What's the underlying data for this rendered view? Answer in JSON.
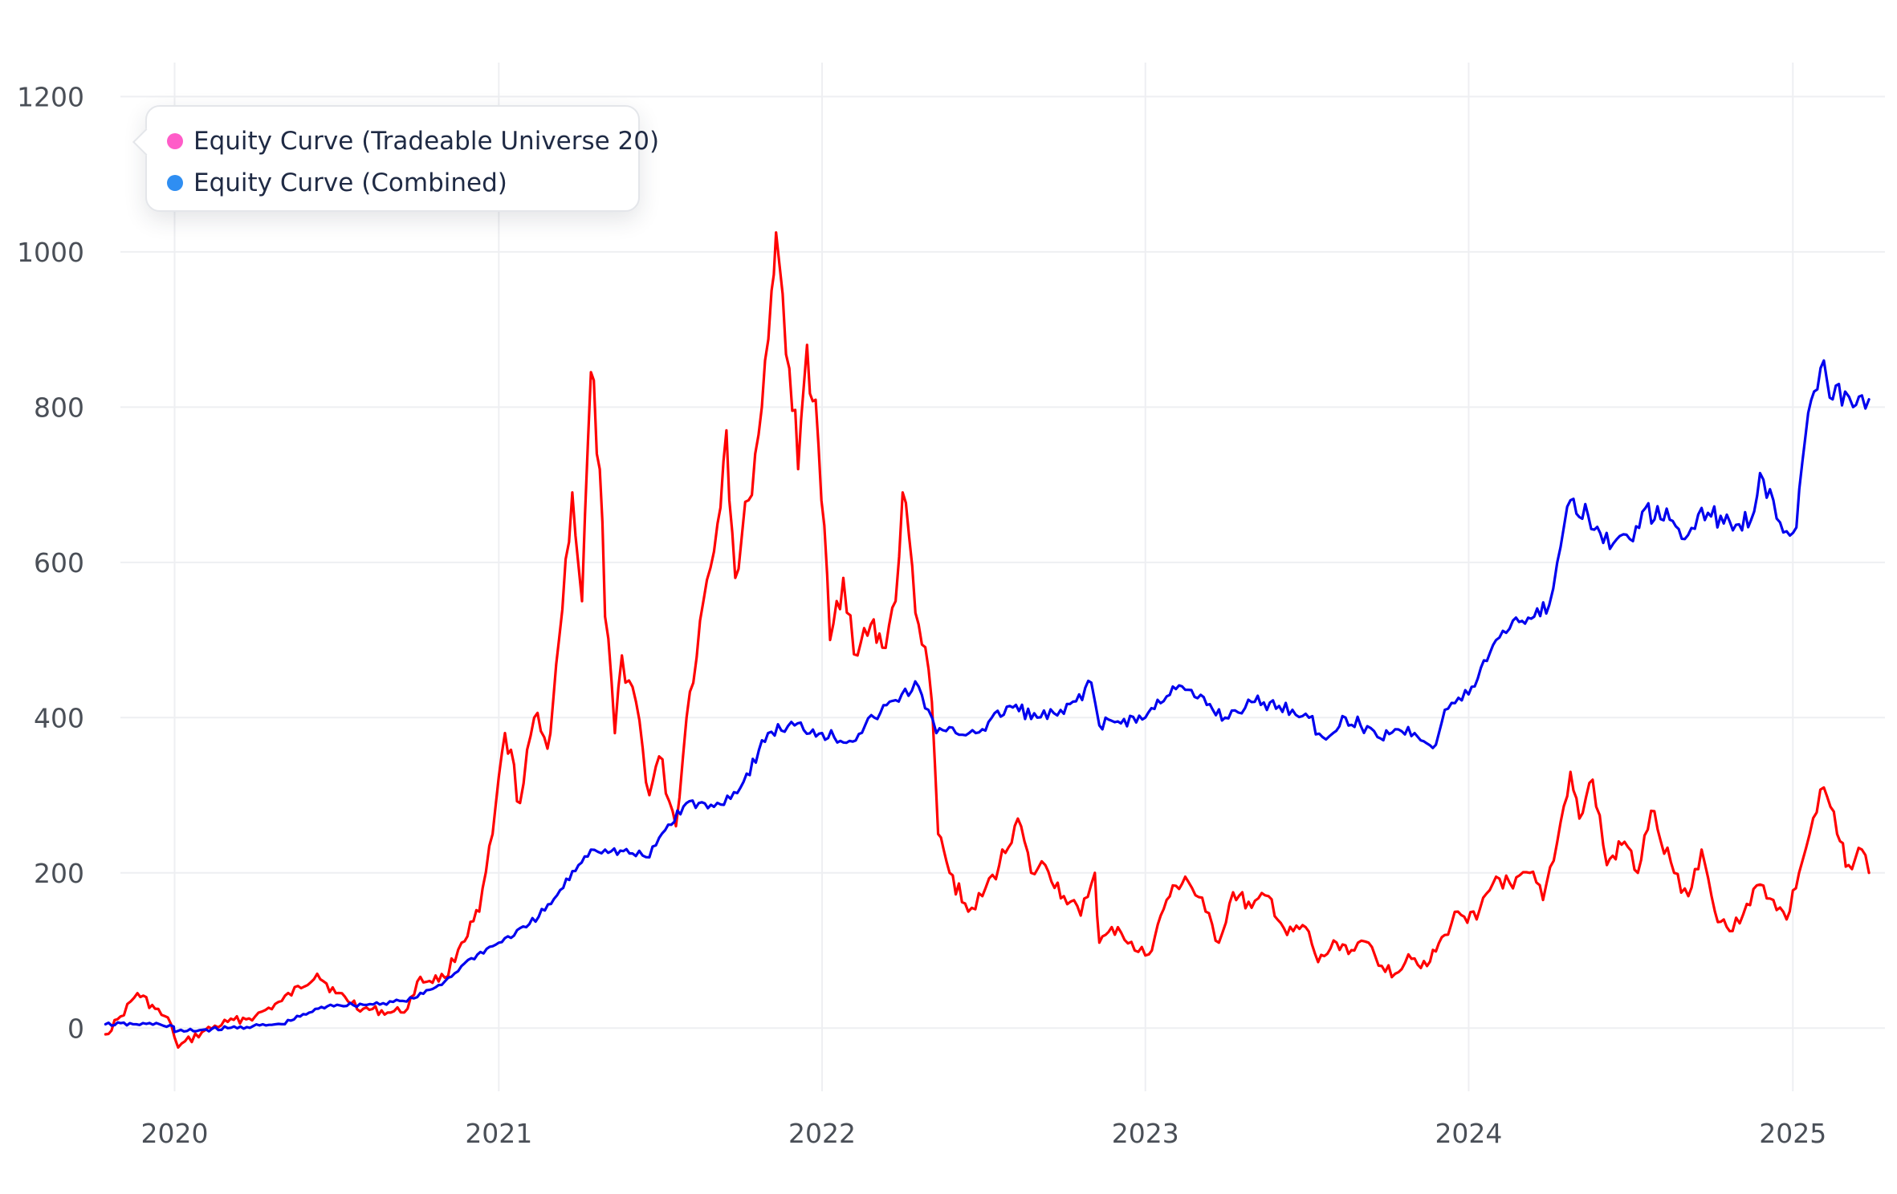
{
  "chart_data": {
    "type": "line",
    "title": "",
    "xlabel": "",
    "ylabel": "",
    "xlim": [
      "2019-10-01",
      "2025-04-15"
    ],
    "ylim": [
      -100,
      1250
    ],
    "x_ticks": [
      "2020",
      "2021",
      "2022",
      "2023",
      "2024",
      "2025"
    ],
    "y_ticks": [
      0,
      200,
      400,
      600,
      800,
      1000,
      1200
    ],
    "grid": true,
    "legend_position": "top-left",
    "legend": [
      {
        "label": "Equity Curve (Tradeable Universe 20)",
        "dot_color": "#ff5cc8"
      },
      {
        "label": "Equity Curve (Combined)",
        "dot_color": "#2f8ef2"
      }
    ],
    "series": [
      {
        "name": "Equity Curve (Tradeable Universe 20)",
        "color": "#ff0000",
        "points": [
          [
            "2019-10-15",
            -8
          ],
          [
            "2019-11-01",
            15
          ],
          [
            "2019-11-20",
            45
          ],
          [
            "2019-12-10",
            25
          ],
          [
            "2019-12-28",
            5
          ],
          [
            "2020-01-05",
            -25
          ],
          [
            "2020-02-01",
            -5
          ],
          [
            "2020-03-01",
            8
          ],
          [
            "2020-04-01",
            15
          ],
          [
            "2020-05-01",
            35
          ],
          [
            "2020-06-10",
            70
          ],
          [
            "2020-07-01",
            45
          ],
          [
            "2020-08-01",
            25
          ],
          [
            "2020-09-01",
            20
          ],
          [
            "2020-09-20",
            25
          ],
          [
            "2020-10-01",
            60
          ],
          [
            "2020-11-01",
            65
          ],
          [
            "2020-11-20",
            110
          ],
          [
            "2020-12-10",
            150
          ],
          [
            "2020-12-25",
            250
          ],
          [
            "2021-01-08",
            380
          ],
          [
            "2021-01-25",
            290
          ],
          [
            "2021-02-10",
            400
          ],
          [
            "2021-02-25",
            360
          ],
          [
            "2021-03-10",
            500
          ],
          [
            "2021-03-25",
            690
          ],
          [
            "2021-04-05",
            550
          ],
          [
            "2021-04-15",
            845
          ],
          [
            "2021-04-25",
            720
          ],
          [
            "2021-05-01",
            530
          ],
          [
            "2021-05-12",
            380
          ],
          [
            "2021-05-20",
            480
          ],
          [
            "2021-06-05",
            420
          ],
          [
            "2021-06-20",
            300
          ],
          [
            "2021-07-01",
            350
          ],
          [
            "2021-07-20",
            260
          ],
          [
            "2021-08-01",
            400
          ],
          [
            "2021-08-20",
            550
          ],
          [
            "2021-09-05",
            650
          ],
          [
            "2021-09-15",
            770
          ],
          [
            "2021-09-25",
            580
          ],
          [
            "2021-10-10",
            680
          ],
          [
            "2021-10-25",
            800
          ],
          [
            "2021-11-05",
            950
          ],
          [
            "2021-11-10",
            1025
          ],
          [
            "2021-11-25",
            850
          ],
          [
            "2021-12-05",
            720
          ],
          [
            "2021-12-15",
            880
          ],
          [
            "2021-12-28",
            750
          ],
          [
            "2022-01-10",
            500
          ],
          [
            "2022-01-25",
            580
          ],
          [
            "2022-02-10",
            480
          ],
          [
            "2022-02-25",
            520
          ],
          [
            "2022-03-10",
            490
          ],
          [
            "2022-03-25",
            550
          ],
          [
            "2022-04-02",
            690
          ],
          [
            "2022-04-20",
            520
          ],
          [
            "2022-05-05",
            420
          ],
          [
            "2022-05-12",
            250
          ],
          [
            "2022-05-25",
            200
          ],
          [
            "2022-06-15",
            150
          ],
          [
            "2022-07-01",
            170
          ],
          [
            "2022-07-20",
            210
          ],
          [
            "2022-08-10",
            270
          ],
          [
            "2022-08-25",
            200
          ],
          [
            "2022-09-10",
            210
          ],
          [
            "2022-10-01",
            170
          ],
          [
            "2022-10-20",
            145
          ],
          [
            "2022-11-05",
            200
          ],
          [
            "2022-11-10",
            110
          ],
          [
            "2022-12-01",
            130
          ],
          [
            "2022-12-20",
            100
          ],
          [
            "2023-01-05",
            95
          ],
          [
            "2023-01-25",
            165
          ],
          [
            "2023-02-15",
            195
          ],
          [
            "2023-03-10",
            150
          ],
          [
            "2023-03-25",
            110
          ],
          [
            "2023-04-10",
            175
          ],
          [
            "2023-05-01",
            155
          ],
          [
            "2023-05-20",
            170
          ],
          [
            "2023-06-10",
            120
          ],
          [
            "2023-07-01",
            130
          ],
          [
            "2023-07-15",
            85
          ],
          [
            "2023-08-05",
            110
          ],
          [
            "2023-08-25",
            100
          ],
          [
            "2023-09-10",
            110
          ],
          [
            "2023-09-25",
            80
          ],
          [
            "2023-10-10",
            70
          ],
          [
            "2023-10-25",
            95
          ],
          [
            "2023-11-15",
            80
          ],
          [
            "2023-12-05",
            120
          ],
          [
            "2023-12-20",
            150
          ],
          [
            "2024-01-10",
            140
          ],
          [
            "2024-02-01",
            195
          ],
          [
            "2024-02-20",
            180
          ],
          [
            "2024-03-10",
            200
          ],
          [
            "2024-03-25",
            165
          ],
          [
            "2024-04-10",
            240
          ],
          [
            "2024-04-25",
            330
          ],
          [
            "2024-05-05",
            270
          ],
          [
            "2024-05-20",
            320
          ],
          [
            "2024-06-05",
            210
          ],
          [
            "2024-06-25",
            240
          ],
          [
            "2024-07-10",
            200
          ],
          [
            "2024-07-25",
            280
          ],
          [
            "2024-08-05",
            240
          ],
          [
            "2024-08-20",
            200
          ],
          [
            "2024-09-05",
            170
          ],
          [
            "2024-09-20",
            230
          ],
          [
            "2024-10-05",
            150
          ],
          [
            "2024-10-25",
            125
          ],
          [
            "2024-11-10",
            160
          ],
          [
            "2024-11-25",
            185
          ],
          [
            "2024-12-10",
            165
          ],
          [
            "2024-12-25",
            140
          ],
          [
            "2025-01-08",
            200
          ],
          [
            "2025-01-20",
            250
          ],
          [
            "2025-02-05",
            310
          ],
          [
            "2025-02-20",
            250
          ],
          [
            "2025-03-05",
            210
          ],
          [
            "2025-03-20",
            230
          ],
          [
            "2025-03-28",
            200
          ]
        ]
      },
      {
        "name": "Equity Curve (Combined)",
        "color": "#0000ee",
        "points": [
          [
            "2019-10-15",
            5
          ],
          [
            "2019-11-15",
            5
          ],
          [
            "2019-12-15",
            5
          ],
          [
            "2019-12-31",
            2
          ],
          [
            "2020-01-01",
            -5
          ],
          [
            "2020-03-01",
            0
          ],
          [
            "2020-05-01",
            5
          ],
          [
            "2020-06-01",
            20
          ],
          [
            "2020-06-25",
            30
          ],
          [
            "2020-08-01",
            30
          ],
          [
            "2020-09-15",
            35
          ],
          [
            "2020-10-01",
            40
          ],
          [
            "2020-11-01",
            60
          ],
          [
            "2020-12-01",
            90
          ],
          [
            "2021-01-01",
            110
          ],
          [
            "2021-02-01",
            130
          ],
          [
            "2021-03-01",
            160
          ],
          [
            "2021-04-01",
            210
          ],
          [
            "2021-04-15",
            230
          ],
          [
            "2021-05-01",
            230
          ],
          [
            "2021-06-01",
            225
          ],
          [
            "2021-06-20",
            220
          ],
          [
            "2021-07-01",
            245
          ],
          [
            "2021-08-01",
            290
          ],
          [
            "2021-09-01",
            285
          ],
          [
            "2021-10-01",
            310
          ],
          [
            "2021-11-01",
            380
          ],
          [
            "2021-12-01",
            390
          ],
          [
            "2022-01-01",
            380
          ],
          [
            "2022-02-01",
            370
          ],
          [
            "2022-03-01",
            400
          ],
          [
            "2022-04-01",
            430
          ],
          [
            "2022-04-20",
            440
          ],
          [
            "2022-05-01",
            410
          ],
          [
            "2022-05-10",
            380
          ],
          [
            "2022-06-01",
            380
          ],
          [
            "2022-07-01",
            385
          ],
          [
            "2022-08-01",
            415
          ],
          [
            "2022-09-01",
            400
          ],
          [
            "2022-10-01",
            405
          ],
          [
            "2022-11-01",
            445
          ],
          [
            "2022-11-10",
            390
          ],
          [
            "2022-12-01",
            395
          ],
          [
            "2023-01-01",
            400
          ],
          [
            "2023-02-01",
            440
          ],
          [
            "2023-03-01",
            425
          ],
          [
            "2023-04-01",
            400
          ],
          [
            "2023-05-01",
            420
          ],
          [
            "2023-06-01",
            415
          ],
          [
            "2023-07-01",
            405
          ],
          [
            "2023-07-20",
            375
          ],
          [
            "2023-08-01",
            380
          ],
          [
            "2023-08-15",
            400
          ],
          [
            "2023-09-01",
            390
          ],
          [
            "2023-09-20",
            375
          ],
          [
            "2023-10-10",
            385
          ],
          [
            "2023-11-01",
            380
          ],
          [
            "2023-11-25",
            365
          ],
          [
            "2023-12-05",
            410
          ],
          [
            "2024-01-01",
            430
          ],
          [
            "2024-02-01",
            500
          ],
          [
            "2024-02-20",
            525
          ],
          [
            "2024-03-15",
            530
          ],
          [
            "2024-04-01",
            545
          ],
          [
            "2024-04-10",
            600
          ],
          [
            "2024-04-25",
            680
          ],
          [
            "2024-05-15",
            660
          ],
          [
            "2024-06-01",
            625
          ],
          [
            "2024-07-01",
            630
          ],
          [
            "2024-07-15",
            665
          ],
          [
            "2024-08-15",
            655
          ],
          [
            "2024-09-01",
            630
          ],
          [
            "2024-09-20",
            670
          ],
          [
            "2024-10-15",
            650
          ],
          [
            "2024-11-15",
            655
          ],
          [
            "2024-11-25",
            715
          ],
          [
            "2024-12-10",
            680
          ],
          [
            "2024-12-25",
            640
          ],
          [
            "2025-01-05",
            645
          ],
          [
            "2025-01-15",
            760
          ],
          [
            "2025-01-25",
            820
          ],
          [
            "2025-02-05",
            860
          ],
          [
            "2025-02-15",
            810
          ],
          [
            "2025-03-01",
            820
          ],
          [
            "2025-03-10",
            800
          ],
          [
            "2025-03-20",
            815
          ],
          [
            "2025-03-28",
            810
          ]
        ]
      }
    ]
  }
}
